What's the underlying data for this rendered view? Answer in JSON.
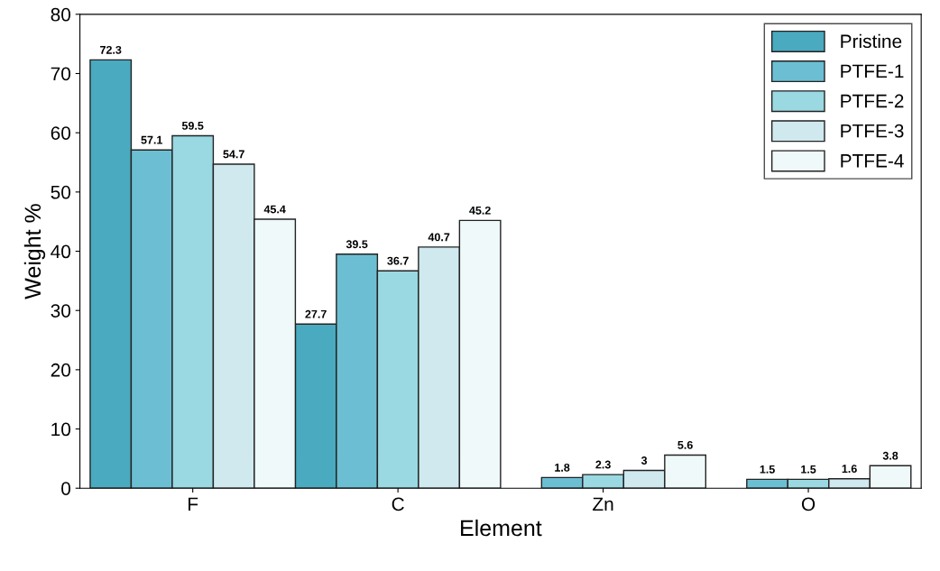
{
  "chart_data": {
    "type": "bar",
    "xlabel": "Element",
    "ylabel": "Weight %",
    "categories": [
      "F",
      "C",
      "Zn",
      "O"
    ],
    "series": [
      {
        "name": "Pristine",
        "color": "#4aaabf",
        "values": [
          72.3,
          27.7,
          null,
          null
        ]
      },
      {
        "name": "PTFE-1",
        "color": "#6cbfd2",
        "values": [
          57.1,
          39.5,
          1.8,
          1.5
        ]
      },
      {
        "name": "PTFE-2",
        "color": "#9ad9e2",
        "values": [
          59.5,
          36.7,
          2.3,
          1.5
        ]
      },
      {
        "name": "PTFE-3",
        "color": "#cfe9ef",
        "values": [
          54.7,
          40.7,
          3,
          1.6
        ]
      },
      {
        "name": "PTFE-4",
        "color": "#eff9f9",
        "values": [
          45.4,
          45.2,
          5.6,
          3.8
        ]
      }
    ],
    "ylim": [
      0,
      80
    ],
    "yticks": [
      0,
      10,
      20,
      30,
      40,
      50,
      60,
      70,
      80
    ],
    "data_labels": true,
    "legend": "top right",
    "grid": false
  }
}
